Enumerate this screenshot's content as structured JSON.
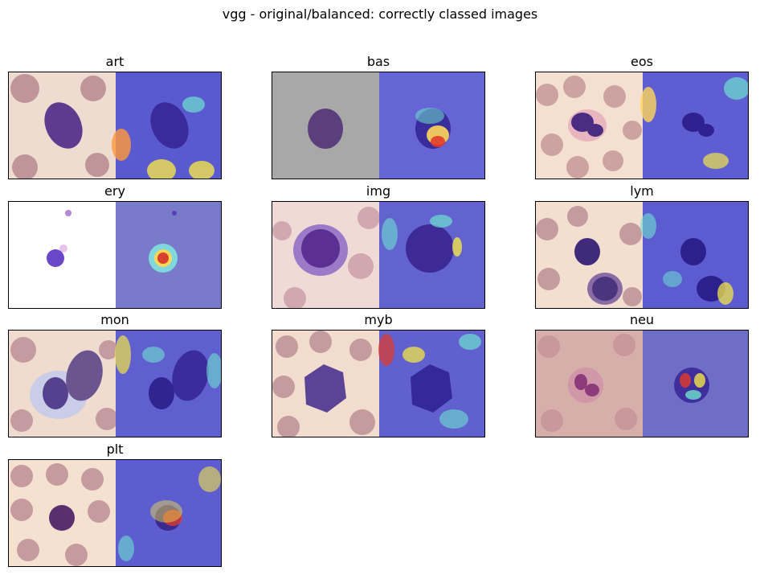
{
  "figure": {
    "title": "vgg - original/balanced: correctly classed images"
  },
  "panels": [
    {
      "label": "art",
      "bg": "#efdcd1",
      "rbc": "#b3838c",
      "cell": "#5e3b8f"
    },
    {
      "label": "bas",
      "bg": "#a8a8a8",
      "rbc": "#a8a8a8",
      "cell": "#5a3f7c"
    },
    {
      "label": "eos",
      "bg": "#f4e0d0",
      "rbc": "#c08f92",
      "cell": "#4b2c83"
    },
    {
      "label": "ery",
      "bg": "#ffffff",
      "rbc": "#ffffff",
      "cell": "#6a46c9"
    },
    {
      "label": "img",
      "bg": "#f0dad5",
      "rbc": "#c99aa6",
      "cell": "#5c2f93"
    },
    {
      "label": "lym",
      "bg": "#f3dfcf",
      "rbc": "#b88b92",
      "cell": "#3f2b7a"
    },
    {
      "label": "mon",
      "bg": "#efdccf",
      "rbc": "#b98b93",
      "cell": "#56418e"
    },
    {
      "label": "myb",
      "bg": "#f1dcce",
      "rbc": "#b98b92",
      "cell": "#5b4396"
    },
    {
      "label": "neu",
      "bg": "#d6aeaa",
      "rbc": "#c69698",
      "cell": "#8e3b7b"
    },
    {
      "label": "plt",
      "bg": "#f4e1cf",
      "rbc": "#b98a93",
      "cell": "#5a2f6f"
    }
  ]
}
